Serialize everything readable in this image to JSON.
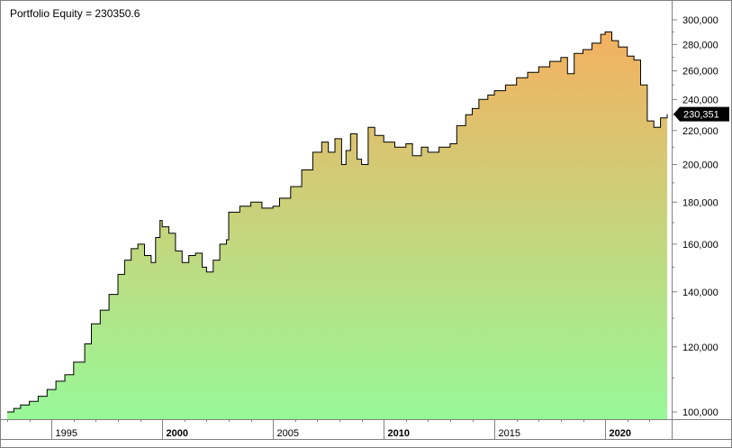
{
  "chart_data": {
    "type": "area",
    "title": "Portfolio Equity = 230350.6",
    "xlabel": "",
    "ylabel": "",
    "y_scale": "log",
    "ylim": [
      98000,
      310000
    ],
    "xlim": [
      1993.0,
      2022.8
    ],
    "y_ticks": [
      100000,
      120000,
      140000,
      160000,
      180000,
      200000,
      220000,
      240000,
      260000,
      280000,
      300000
    ],
    "y_tick_labels": [
      "100,000",
      "120,000",
      "140,000",
      "160,000",
      "180,000",
      "200,000",
      "220,000",
      "240,000",
      "260,000",
      "280,000",
      "300,000"
    ],
    "x_ticks": [
      1995,
      2000,
      2005,
      2010,
      2015,
      2020
    ],
    "x_tick_labels": [
      "1995",
      "2000",
      "2005",
      "2010",
      "2015",
      "2020"
    ],
    "x_bold_ticks": [
      "2000",
      "2010",
      "2020"
    ],
    "last_value_label": "230,351",
    "grid": false,
    "legend": "none",
    "colors": {
      "line": "#000000",
      "fill_top": "#f4b060",
      "fill_bottom": "#98f898",
      "axis": "#808080",
      "marker_bg": "#000000"
    },
    "series": [
      {
        "x": [
          1993.0,
          1993.3,
          1993.6,
          1994.0,
          1994.4,
          1994.8,
          1995.2,
          1995.6,
          1996.0,
          1996.5,
          1996.8,
          1997.2,
          1997.6,
          1998.0,
          1998.3,
          1998.6,
          1998.9,
          1999.2,
          1999.5,
          1999.7,
          1999.9,
          2000.0,
          2000.3,
          2000.6,
          2000.9,
          2001.2,
          2001.5,
          2001.8,
          2002.0,
          2002.3,
          2002.6,
          2002.9,
          2003.0,
          2003.5,
          2004.0,
          2004.5,
          2005.0,
          2005.3,
          2005.8,
          2006.3,
          2006.8,
          2007.2,
          2007.5,
          2007.8,
          2008.1,
          2008.3,
          2008.5,
          2008.8,
          2009.0,
          2009.3,
          2009.6,
          2010.0,
          2010.5,
          2011.0,
          2011.3,
          2011.7,
          2012.0,
          2012.5,
          2013.0,
          2013.3,
          2013.7,
          2014.0,
          2014.3,
          2014.7,
          2015.0,
          2015.5,
          2016.0,
          2016.5,
          2017.0,
          2017.5,
          2018.0,
          2018.3,
          2018.6,
          2019.0,
          2019.4,
          2019.8,
          2020.0,
          2020.3,
          2020.6,
          2021.0,
          2021.3,
          2021.6,
          2021.9,
          2022.2,
          2022.5,
          2022.8
        ],
        "y": [
          100000,
          101000,
          102000,
          103000,
          104500,
          106500,
          109000,
          111000,
          115000,
          121000,
          128000,
          133000,
          139000,
          147000,
          153000,
          158000,
          160000,
          155000,
          152000,
          163000,
          171000,
          168000,
          165000,
          157000,
          152000,
          155000,
          156000,
          150000,
          148000,
          153000,
          160000,
          162000,
          175000,
          178000,
          180000,
          177000,
          178000,
          182000,
          188000,
          197000,
          207000,
          213000,
          207000,
          215000,
          200000,
          208000,
          218000,
          203000,
          200000,
          222000,
          217000,
          213000,
          210000,
          212000,
          205000,
          210000,
          207000,
          210000,
          212000,
          223000,
          230000,
          234000,
          240000,
          243000,
          246000,
          250000,
          255000,
          259000,
          263000,
          267000,
          270000,
          258000,
          273000,
          276000,
          281000,
          288000,
          290000,
          283000,
          278000,
          271000,
          268000,
          250000,
          226000,
          222000,
          228000,
          230351
        ]
      }
    ]
  }
}
